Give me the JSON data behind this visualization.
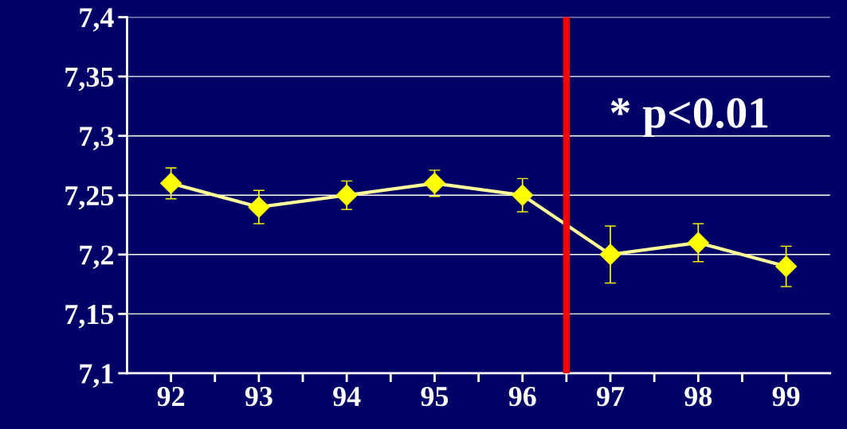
{
  "chart_data": {
    "type": "line",
    "x": [
      92,
      93,
      94,
      95,
      96,
      97,
      98,
      99
    ],
    "series": [
      {
        "color": "#ffff00",
        "values": [
          7.26,
          7.24,
          7.25,
          7.26,
          7.25,
          7.2,
          7.21,
          7.19
        ],
        "errors": [
          0.013,
          0.014,
          0.012,
          0.011,
          0.014,
          0.024,
          0.016,
          0.017
        ]
      }
    ],
    "xlim": [
      91.5,
      99.5
    ],
    "xticks": [
      92,
      93,
      94,
      95,
      96,
      97,
      98,
      99,
      {
        "value": 92.5,
        "label": null
      },
      {
        "value": 93.5,
        "label": null
      },
      {
        "value": 94.5,
        "label": null
      },
      {
        "value": 95.5,
        "label": null
      },
      {
        "value": 96.5,
        "label": null
      },
      {
        "value": 97.5,
        "label": null
      },
      {
        "value": 98.5,
        "label": null
      }
    ],
    "ylim": [
      7.1,
      7.4
    ],
    "yticks": [
      {
        "value": 7.1,
        "label": "7,1"
      },
      {
        "value": 7.15,
        "label": "7,15"
      },
      {
        "value": 7.2,
        "label": "7,2"
      },
      {
        "value": 7.25,
        "label": "7,25"
      },
      {
        "value": 7.3,
        "label": "7,3"
      },
      {
        "value": 7.35,
        "label": "7,35"
      },
      {
        "value": 7.4,
        "label": "7,4"
      }
    ],
    "grid": "y",
    "marker": "diamond",
    "line_style": "solid",
    "ref_lines": [
      {
        "axis": "x",
        "value": 96.5,
        "color": "#ff0000"
      }
    ],
    "annotations": [
      "* p<0.01"
    ]
  }
}
